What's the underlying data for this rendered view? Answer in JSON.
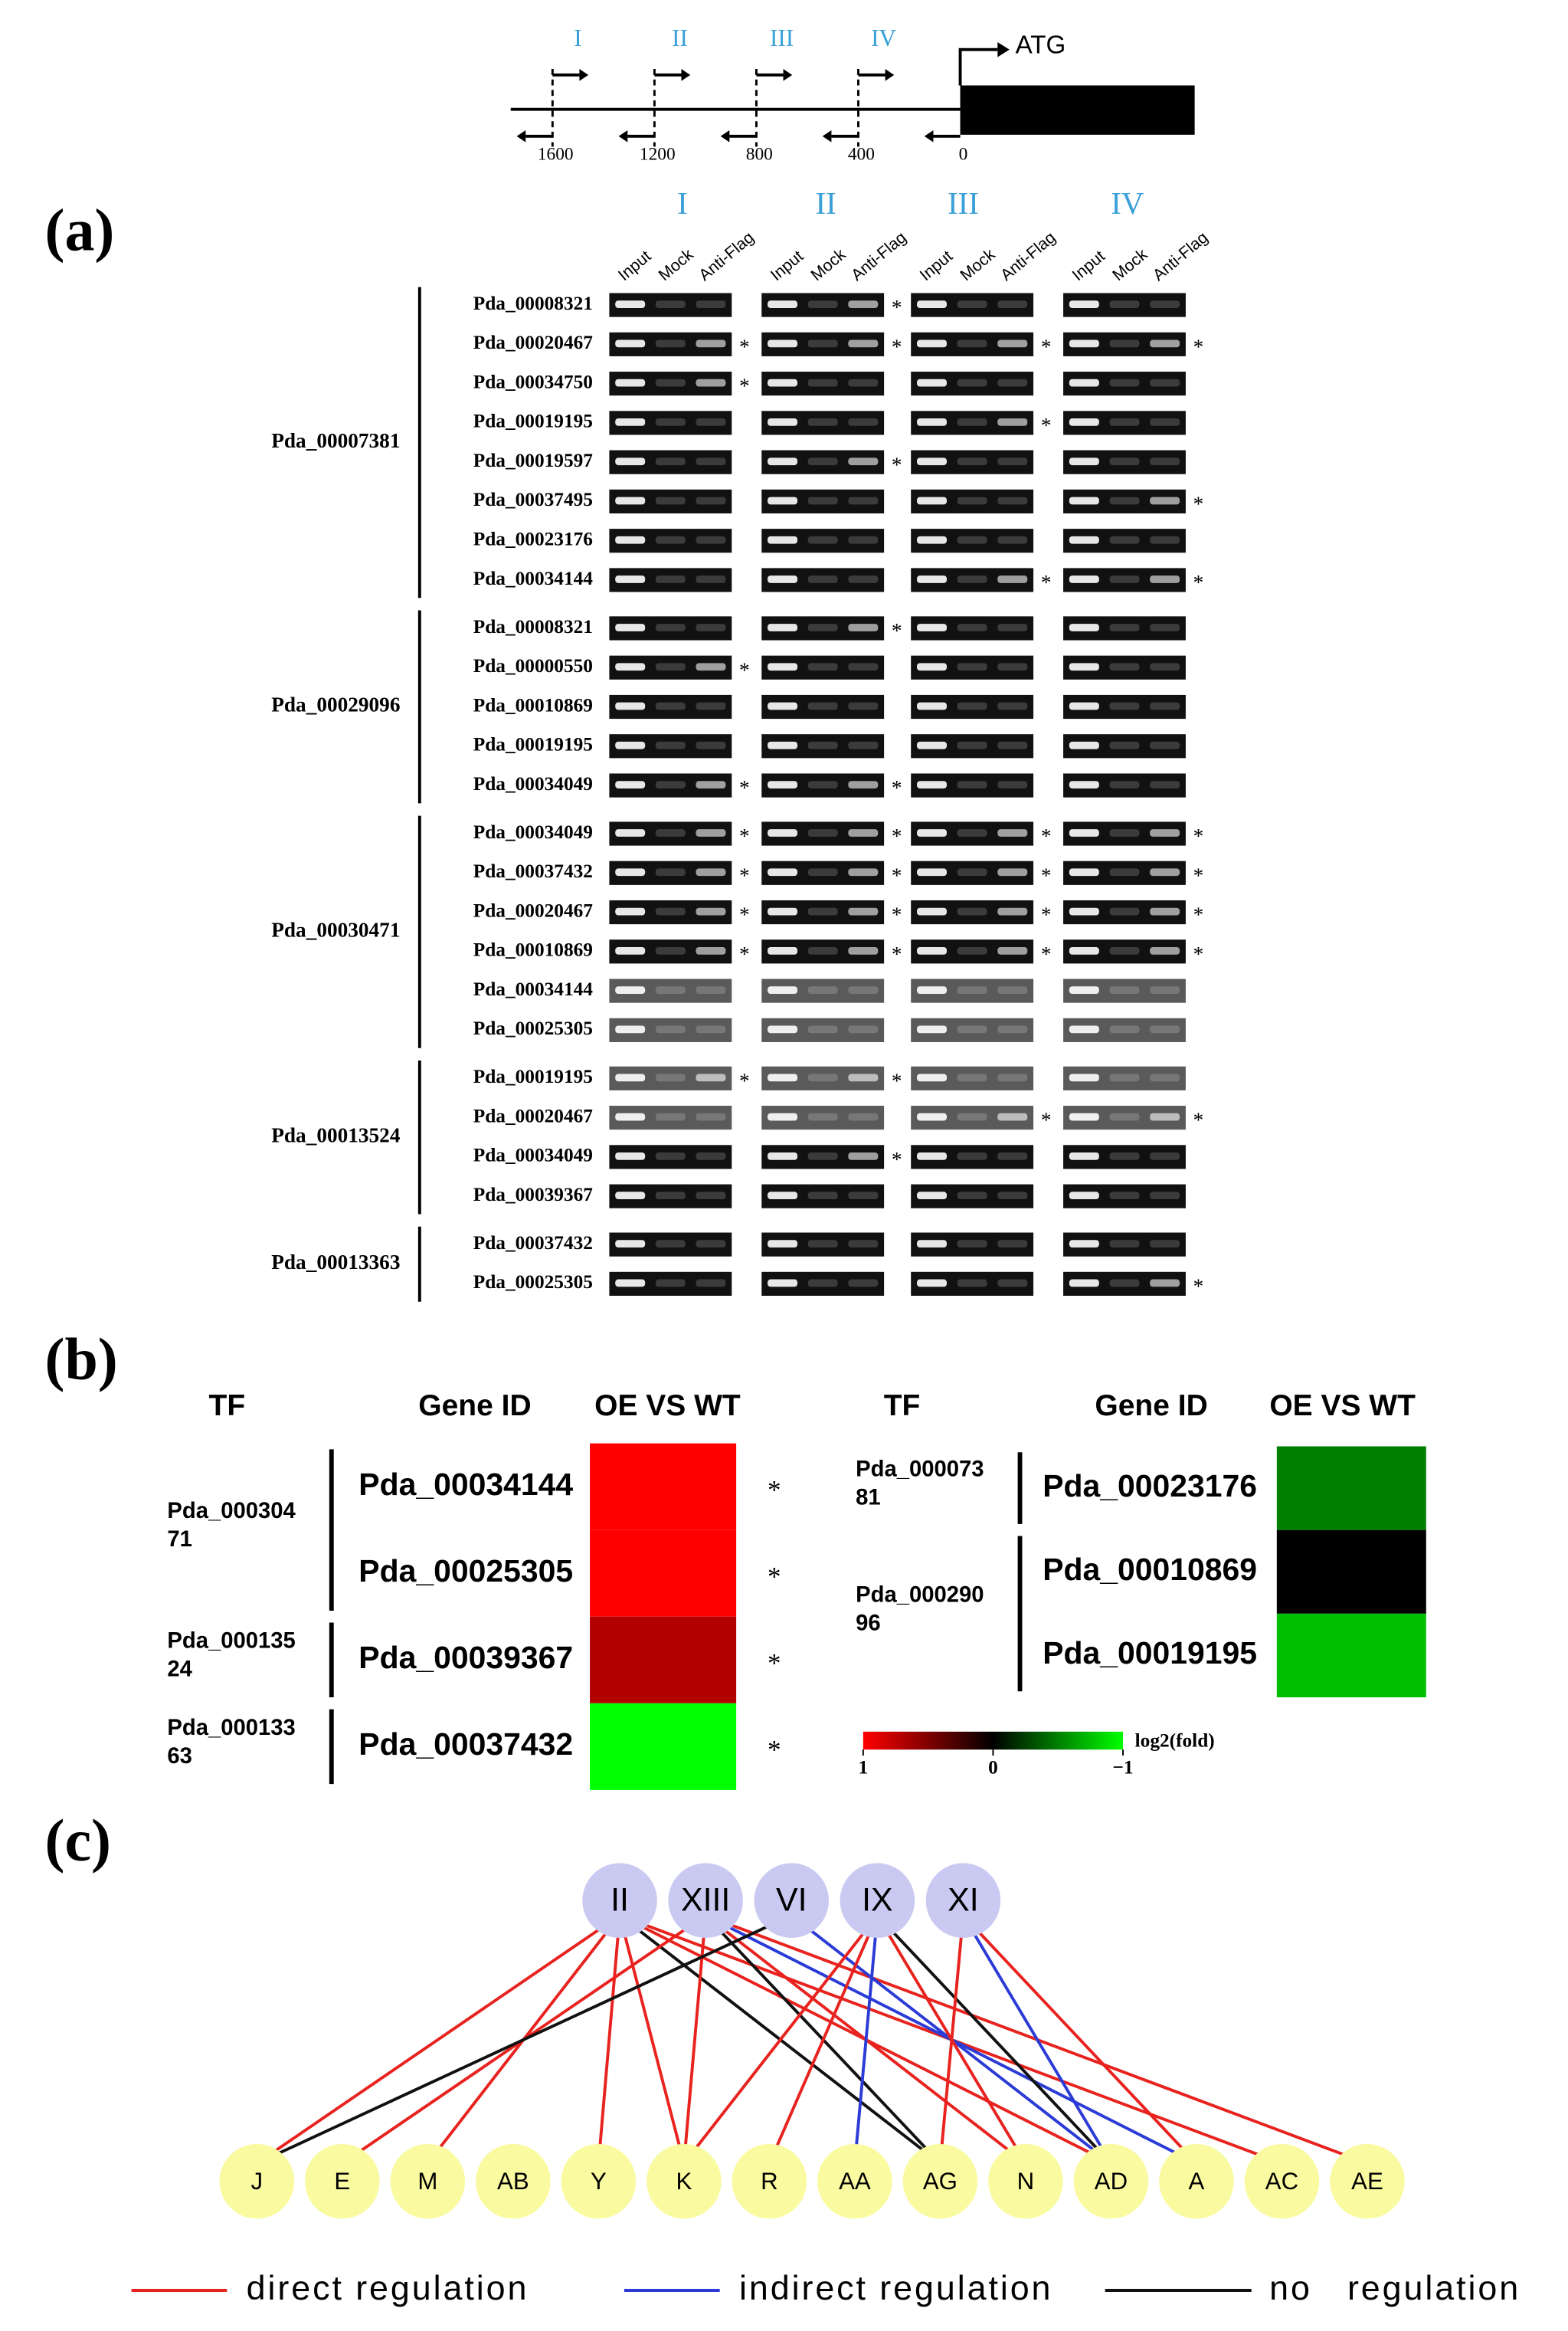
{
  "promoter": {
    "regions": [
      "I",
      "II",
      "III",
      "IV"
    ],
    "start": "ATG",
    "positions": [
      1600,
      1200,
      800,
      400,
      0
    ]
  },
  "significance_mark": "*",
  "panel_a": {
    "label": "(a)",
    "lanes": [
      "Input",
      "Mock",
      "Anti-Flag"
    ],
    "groups": [
      {
        "tf": "Pda_00007381",
        "rows": [
          {
            "gene": "Pda_00008321",
            "sig": [
              false,
              true,
              false,
              false
            ]
          },
          {
            "gene": "Pda_00020467",
            "sig": [
              true,
              true,
              true,
              true
            ]
          },
          {
            "gene": "Pda_00034750",
            "sig": [
              true,
              false,
              false,
              false
            ]
          },
          {
            "gene": "Pda_00019195",
            "sig": [
              false,
              false,
              true,
              false
            ]
          },
          {
            "gene": "Pda_00019597",
            "sig": [
              false,
              true,
              false,
              false
            ]
          },
          {
            "gene": "Pda_00037495",
            "sig": [
              false,
              false,
              false,
              true
            ]
          },
          {
            "gene": "Pda_00023176",
            "sig": [
              false,
              false,
              false,
              false
            ]
          },
          {
            "gene": "Pda_00034144",
            "sig": [
              false,
              false,
              true,
              true
            ]
          }
        ]
      },
      {
        "tf": "Pda_00029096",
        "rows": [
          {
            "gene": "Pda_00008321",
            "sig": [
              false,
              true,
              false,
              false
            ]
          },
          {
            "gene": "Pda_00000550",
            "sig": [
              true,
              false,
              false,
              false
            ]
          },
          {
            "gene": "Pda_00010869",
            "sig": [
              false,
              false,
              false,
              false
            ]
          },
          {
            "gene": "Pda_00019195",
            "sig": [
              false,
              false,
              false,
              false
            ]
          },
          {
            "gene": "Pda_00034049",
            "sig": [
              true,
              true,
              false,
              false
            ]
          }
        ]
      },
      {
        "tf": "Pda_00030471",
        "rows": [
          {
            "gene": "Pda_00034049",
            "sig": [
              true,
              true,
              true,
              true
            ]
          },
          {
            "gene": "Pda_00037432",
            "sig": [
              true,
              true,
              true,
              true
            ]
          },
          {
            "gene": "Pda_00020467",
            "sig": [
              true,
              true,
              true,
              true
            ]
          },
          {
            "gene": "Pda_00010869",
            "sig": [
              true,
              true,
              true,
              true
            ]
          },
          {
            "gene": "Pda_00034144",
            "sig": [
              false,
              false,
              false,
              false
            ]
          },
          {
            "gene": "Pda_00025305",
            "sig": [
              false,
              false,
              false,
              false
            ]
          }
        ]
      },
      {
        "tf": "Pda_00013524",
        "rows": [
          {
            "gene": "Pda_00019195",
            "sig": [
              true,
              true,
              false,
              false
            ]
          },
          {
            "gene": "Pda_00020467",
            "sig": [
              false,
              false,
              true,
              true
            ]
          },
          {
            "gene": "Pda_00034049",
            "sig": [
              false,
              true,
              false,
              false
            ]
          },
          {
            "gene": "Pda_00039367",
            "sig": [
              false,
              false,
              false,
              false
            ]
          }
        ]
      },
      {
        "tf": "Pda_00013363",
        "rows": [
          {
            "gene": "Pda_00037432",
            "sig": [
              false,
              false,
              false,
              false
            ]
          },
          {
            "gene": "Pda_00025305",
            "sig": [
              false,
              false,
              false,
              true
            ]
          }
        ]
      }
    ]
  },
  "panel_b": {
    "label": "(b)",
    "headers": [
      "TF",
      "Gene ID",
      "OE VS WT"
    ],
    "tables": [
      {
        "groups": [
          {
            "tf": "Pda_00030471",
            "genes": [
              {
                "id": "Pda_00034144",
                "value": 1,
                "sig": true
              },
              {
                "id": "Pda_00025305",
                "value": 1,
                "sig": true
              }
            ]
          },
          {
            "tf": "Pda_00013524",
            "genes": [
              {
                "id": "Pda_00039367",
                "value": 0.7,
                "sig": true
              }
            ]
          },
          {
            "tf": "Pda_00013363",
            "genes": [
              {
                "id": "Pda_00037432",
                "value": -1,
                "sig": true
              }
            ]
          }
        ]
      },
      {
        "groups": [
          {
            "tf": "Pda_00007381",
            "genes": [
              {
                "id": "Pda_00023176",
                "value": -0.5,
                "sig": false
              }
            ]
          },
          {
            "tf": "Pda_00029096",
            "genes": [
              {
                "id": "Pda_00010869",
                "value": 0,
                "sig": false
              },
              {
                "id": "Pda_00019195",
                "value": -0.75,
                "sig": false
              }
            ]
          }
        ]
      }
    ],
    "colorbar": {
      "title": "log2(fold)",
      "lim": [
        1,
        -1
      ],
      "ticks": [
        1,
        0,
        {
          "value": -1,
          "label": "−1"
        }
      ]
    }
  },
  "panel_c": {
    "label": "(c)",
    "top_nodes": [
      "II",
      "XIII",
      "VI",
      "IX",
      "XI"
    ],
    "bottom_nodes": [
      "J",
      "E",
      "M",
      "AB",
      "Y",
      "K",
      "R",
      "AA",
      "AG",
      "N",
      "AD",
      "A",
      "AC",
      "AE"
    ],
    "legend": [
      {
        "label": "direct regulation",
        "color": "#e8231f"
      },
      {
        "label": "indirect regulation",
        "color": "#2b3bd6"
      },
      {
        "label": "no   regulation",
        "color": "#111111"
      }
    ],
    "edges": [
      {
        "from": "II",
        "to": "J",
        "type": 0
      },
      {
        "from": "II",
        "to": "M",
        "type": 0
      },
      {
        "from": "II",
        "to": "Y",
        "type": 0
      },
      {
        "from": "II",
        "to": "K",
        "type": 0
      },
      {
        "from": "II",
        "to": "AG",
        "type": 2
      },
      {
        "from": "II",
        "to": "AD",
        "type": 0
      },
      {
        "from": "II",
        "to": "AC",
        "type": 0
      },
      {
        "from": "XIII",
        "to": "E",
        "type": 0
      },
      {
        "from": "XIII",
        "to": "K",
        "type": 0
      },
      {
        "from": "XIII",
        "to": "N",
        "type": 0
      },
      {
        "from": "XIII",
        "to": "AG",
        "type": 2
      },
      {
        "from": "XIII",
        "to": "A",
        "type": 1
      },
      {
        "from": "XIII",
        "to": "AE",
        "type": 0
      },
      {
        "from": "VI",
        "to": "J",
        "type": 2
      },
      {
        "from": "VI",
        "to": "AD",
        "type": 1
      },
      {
        "from": "IX",
        "to": "AA",
        "type": 1
      },
      {
        "from": "IX",
        "to": "K",
        "type": 0
      },
      {
        "from": "IX",
        "to": "R",
        "type": 0
      },
      {
        "from": "IX",
        "to": "N",
        "type": 0
      },
      {
        "from": "IX",
        "to": "AD",
        "type": 2
      },
      {
        "from": "XI",
        "to": "AD",
        "type": 1
      },
      {
        "from": "XI",
        "to": "A",
        "type": 0
      },
      {
        "from": "XI",
        "to": "AG",
        "type": 0
      }
    ]
  }
}
